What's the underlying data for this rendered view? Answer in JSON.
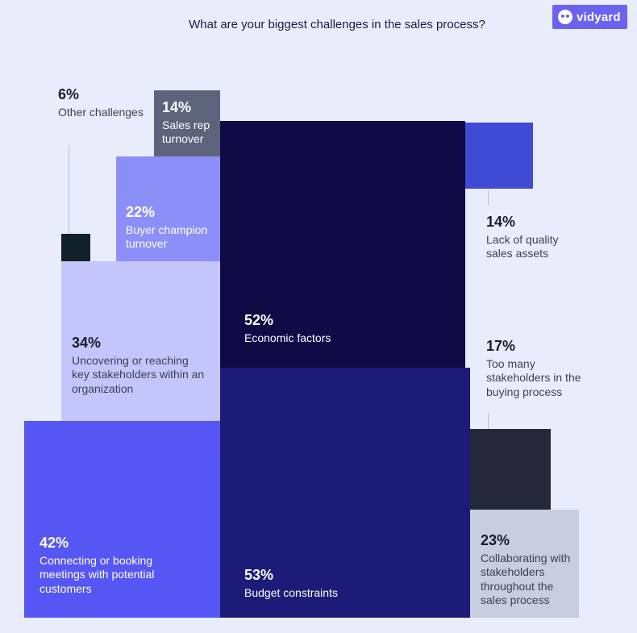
{
  "header": {
    "title": "What are your biggest challenges in the sales process?",
    "logo_text": "vidyard"
  },
  "chart_data": {
    "type": "treemap",
    "title": "What are your biggest challenges in the sales process?",
    "unit": "%",
    "items": [
      {
        "key": "other",
        "value": 6,
        "label": "6%",
        "desc": "Other challenges",
        "color": "#10212a"
      },
      {
        "key": "sales_rep",
        "value": 14,
        "label": "14%",
        "desc": "Sales rep turnover",
        "color": "#5e637c"
      },
      {
        "key": "buyer_champion",
        "value": 22,
        "label": "22%",
        "desc": "Buyer champion turnover",
        "color": "#8c8ff7"
      },
      {
        "key": "economic",
        "value": 52,
        "label": "52%",
        "desc": "Economic factors",
        "color": "#0e0b46"
      },
      {
        "key": "quality_assets",
        "value": 14,
        "label": "14%",
        "desc": "Lack of quality sales assets",
        "color": "#3f4bd5"
      },
      {
        "key": "stakeholders_key",
        "value": 34,
        "label": "34%",
        "desc": "Uncovering or reaching key stakeholders within an organization",
        "color": "#c4c6fb"
      },
      {
        "key": "too_many",
        "value": 17,
        "label": "17%",
        "desc": "Too many stakeholders in the buying process",
        "color": "#252838"
      },
      {
        "key": "connecting",
        "value": 42,
        "label": "42%",
        "desc": "Connecting or booking meetings with potential customers",
        "color": "#5656f4"
      },
      {
        "key": "budget",
        "value": 53,
        "label": "53%",
        "desc": "Budget constraints",
        "color": "#1c1c78"
      },
      {
        "key": "collaborating",
        "value": 23,
        "label": "23%",
        "desc": "Collaborating with stakeholders throughout the sales process",
        "color": "#c8cde0"
      }
    ]
  }
}
